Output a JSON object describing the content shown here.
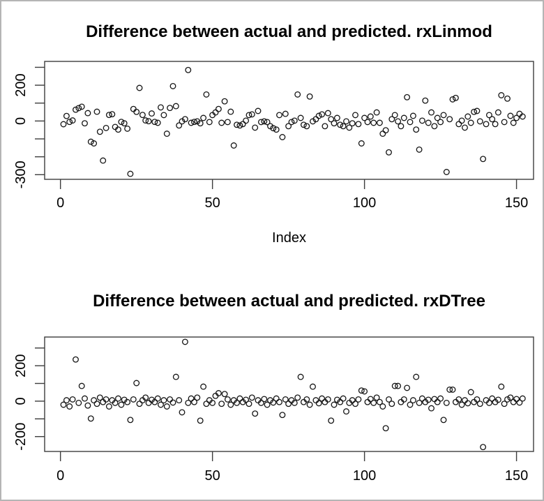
{
  "window": {
    "background": "#ffffff",
    "border_color": "#b5b5b5"
  },
  "chart_data": [
    {
      "type": "scatter",
      "title": "Difference between actual and predicted. rxLinmod",
      "xlabel": "Index",
      "ylabel": "",
      "marker": "open-circle",
      "n_points": 152,
      "x_start": 1,
      "xlim": [
        -5.2,
        155.6
      ],
      "ylim": [
        -326,
        333
      ],
      "xticks": [
        0,
        50,
        100,
        150
      ],
      "yticks": [
        -300,
        -200,
        -100,
        0,
        100,
        200,
        300
      ],
      "ytick_labels_shown": [
        -300,
        0,
        200
      ],
      "grid": false,
      "values": [
        -18,
        28,
        -5,
        3,
        63,
        72,
        80,
        -13,
        44,
        -116,
        -125,
        52,
        -60,
        -221,
        -39,
        34,
        38,
        -33,
        -48,
        -5,
        -13,
        -43,
        -295,
        67,
        51,
        185,
        34,
        3,
        -1,
        42,
        -5,
        -10,
        76,
        33,
        -71,
        73,
        195,
        83,
        -25,
        -2,
        10,
        285,
        -10,
        -5,
        -2,
        -13,
        17,
        148,
        -6,
        33,
        48,
        67,
        -10,
        110,
        -6,
        52,
        -137,
        -21,
        -25,
        -17,
        2,
        33,
        37,
        -37,
        56,
        -6,
        -2,
        -6,
        -29,
        -40,
        -48,
        33,
        -90,
        40,
        -29,
        -6,
        2,
        148,
        17,
        -21,
        -29,
        137,
        -2,
        10,
        29,
        37,
        -29,
        44,
        10,
        -13,
        17,
        -21,
        -29,
        -2,
        -37,
        -13,
        33,
        -17,
        -125,
        17,
        -6,
        25,
        -10,
        48,
        -10,
        -71,
        -52,
        -175,
        10,
        33,
        -2,
        -29,
        17,
        133,
        -6,
        29,
        -48,
        -160,
        2,
        114,
        -10,
        48,
        -29,
        17,
        -6,
        33,
        -285,
        10,
        121,
        129,
        -17,
        2,
        -37,
        25,
        -10,
        51,
        56,
        -2,
        -212,
        -17,
        33,
        10,
        -17,
        48,
        144,
        -6,
        125,
        29,
        -10,
        17,
        40,
        25
      ]
    },
    {
      "type": "scatter",
      "title": "Difference between actual and predicted. rxDTree",
      "xlabel": "",
      "ylabel": "",
      "marker": "open-circle",
      "n_points": 152,
      "x_start": 1,
      "xlim": [
        -5.2,
        155.6
      ],
      "ylim": [
        -284,
        362
      ],
      "xticks": [
        0,
        50,
        100,
        150
      ],
      "yticks": [
        -200,
        -100,
        0,
        100,
        200,
        300
      ],
      "ytick_labels_shown": [
        -200,
        0,
        200
      ],
      "grid": false,
      "values": [
        -20,
        5,
        -30,
        10,
        235,
        -10,
        86,
        15,
        -25,
        -98,
        5,
        -15,
        20,
        -5,
        10,
        -30,
        5,
        -10,
        15,
        -20,
        8,
        -5,
        -106,
        10,
        102,
        -15,
        5,
        20,
        -10,
        8,
        -5,
        15,
        -20,
        5,
        -30,
        10,
        -8,
        137,
        5,
        -63,
        335,
        -10,
        15,
        -5,
        20,
        -110,
        82,
        -15,
        5,
        -10,
        30,
        45,
        -15,
        40,
        10,
        -20,
        5,
        -10,
        15,
        -5,
        8,
        -15,
        20,
        -70,
        5,
        -10,
        12,
        -20,
        5,
        -8,
        15,
        -5,
        -78,
        10,
        -15,
        5,
        -10,
        20,
        137,
        -5,
        10,
        -20,
        82,
        5,
        -12,
        15,
        -5,
        10,
        -110,
        -20,
        8,
        -5,
        15,
        -58,
        -10,
        5,
        -15,
        10,
        60,
        55,
        -5,
        12,
        -10,
        20,
        -5,
        -30,
        -153,
        10,
        -15,
        86,
        86,
        -5,
        10,
        75,
        -20,
        5,
        137,
        -10,
        15,
        -5,
        8,
        -40,
        12,
        -5,
        15,
        -106,
        -10,
        65,
        65,
        -5,
        10,
        -20,
        5,
        -12,
        51,
        -5,
        10,
        -15,
        -259,
        5,
        -10,
        15,
        -5,
        8,
        82,
        -15,
        10,
        20,
        -5,
        12,
        -8,
        15
      ]
    }
  ]
}
